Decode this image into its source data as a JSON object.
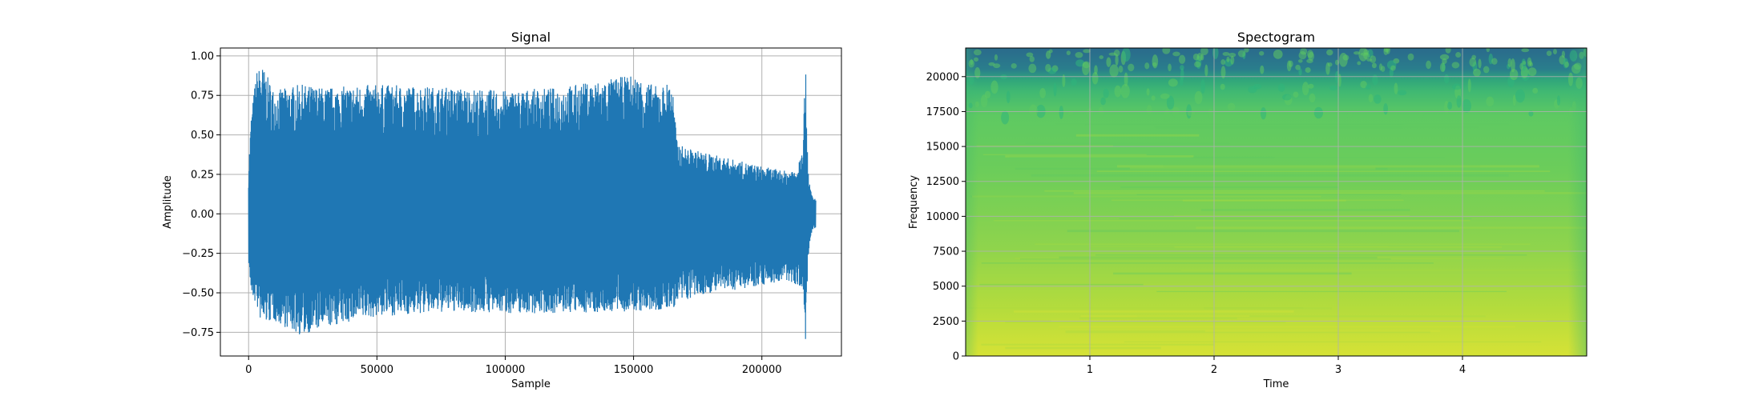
{
  "chart_data": [
    {
      "type": "line",
      "title": "Signal",
      "xlabel": "Sample",
      "ylabel": "Amplitude",
      "xlim": [
        -11000,
        231000
      ],
      "ylim": [
        -0.9,
        1.05
      ],
      "xticks": [
        0,
        50000,
        100000,
        150000,
        200000
      ],
      "yticks": [
        -0.75,
        -0.5,
        -0.25,
        0.0,
        0.25,
        0.5,
        0.75,
        1.0
      ],
      "grid": true,
      "color": "#1f77b4",
      "envelope": {
        "x": [
          0,
          1000,
          3000,
          5000,
          10000,
          20000,
          30000,
          50000,
          80000,
          100000,
          120000,
          150000,
          160000,
          165000,
          167000,
          170000,
          180000,
          190000,
          200000,
          210000,
          214000,
          216000,
          217000,
          218000,
          219000,
          220000,
          221000
        ],
        "upper": [
          0.3,
          0.62,
          0.9,
          0.95,
          0.78,
          0.82,
          0.8,
          0.82,
          0.8,
          0.78,
          0.8,
          0.88,
          0.8,
          0.85,
          0.45,
          0.42,
          0.38,
          0.34,
          0.3,
          0.27,
          0.3,
          0.5,
          0.94,
          0.3,
          0.15,
          0.1,
          0.1
        ],
        "lower": [
          -0.3,
          -0.52,
          -0.58,
          -0.7,
          -0.68,
          -0.77,
          -0.72,
          -0.65,
          -0.62,
          -0.63,
          -0.63,
          -0.62,
          -0.62,
          -0.6,
          -0.58,
          -0.55,
          -0.5,
          -0.48,
          -0.45,
          -0.43,
          -0.45,
          -0.5,
          -0.81,
          -0.3,
          -0.15,
          -0.1,
          -0.1
        ]
      }
    },
    {
      "type": "heatmap",
      "title": "Spectogram",
      "xlabel": "Time",
      "ylabel": "Frequency",
      "xlim": [
        0.0,
        5.0
      ],
      "ylim": [
        0,
        22050
      ],
      "xticks": [
        1,
        2,
        3,
        4
      ],
      "yticks": [
        0,
        2500,
        5000,
        7500,
        10000,
        12500,
        15000,
        17500,
        20000
      ],
      "grid": true,
      "colormap": "viridis",
      "intensity_profile": {
        "frequency": [
          0,
          500,
          1000,
          2500,
          5000,
          7500,
          10000,
          15000,
          17500,
          19500,
          20500,
          22050
        ],
        "level": [
          0.93,
          0.9,
          0.85,
          0.82,
          0.78,
          0.74,
          0.7,
          0.66,
          0.6,
          0.5,
          0.36,
          0.3
        ]
      },
      "colors": {
        "high": "#d6e236",
        "upper_mid": "#a5d942",
        "mid": "#5ec962",
        "low_mid": "#2fb47c",
        "low": "#21918c",
        "floor": "#2a6a8c"
      }
    }
  ]
}
